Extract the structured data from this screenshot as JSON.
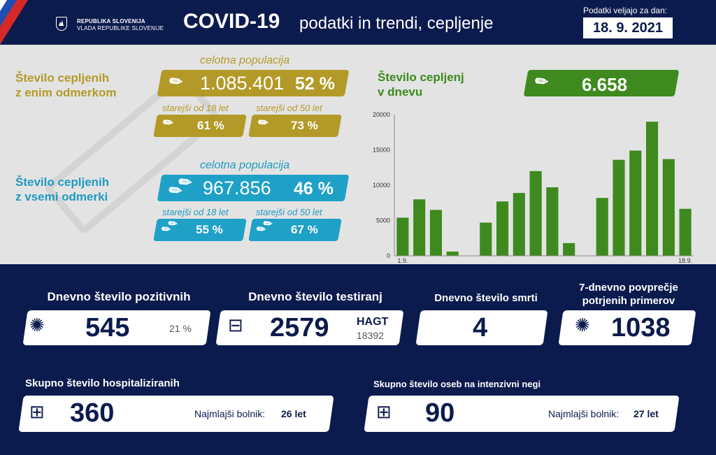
{
  "header": {
    "gov_line1": "REPUBLIKA SLOVENIJA",
    "gov_line2": "VLADA REPUBLIKE SLOVENIJE",
    "title_main": "COVID-19",
    "title_sub": "podatki in trendi, cepljenje",
    "date_label": "Podatki veljajo za dan:",
    "date": "18. 9. 2021"
  },
  "one_dose": {
    "title_line1": "Število cepljenih",
    "title_line2": "z enim odmerkom",
    "pop_label": "celotna populacija",
    "total": "1.085.401",
    "total_pct": "52 %",
    "age18_label": "starejši od 18 let",
    "age18_pct": "61 %",
    "age50_label": "starejši od 50 let",
    "age50_pct": "73 %",
    "color": "#b39a28"
  },
  "all_doses": {
    "title_line1": "Število cepljenih",
    "title_line2": "z vsemi odmerki",
    "pop_label": "celotna populacija",
    "total": "967.856",
    "total_pct": "46 %",
    "age18_label": "starejši od 18 let",
    "age18_pct": "55 %",
    "age50_label": "starejši od 50 let",
    "age50_pct": "67 %",
    "color": "#1fa0c7"
  },
  "daily_vacc": {
    "title_line1": "Število cepljenj",
    "title_line2": "v dnevu",
    "value": "6.658",
    "color": "#3e8a1e"
  },
  "chart_data": {
    "type": "bar",
    "x": [
      "1.",
      "2.",
      "3.",
      "4.",
      "5.",
      "6.",
      "7.",
      "8.",
      "9.",
      "10.",
      "11.",
      "12.",
      "13.",
      "14.",
      "15.",
      "16.",
      "17.",
      "18."
    ],
    "values": [
      5400,
      8000,
      6500,
      600,
      0,
      4700,
      7700,
      8900,
      12000,
      9700,
      1800,
      0,
      8200,
      13600,
      14900,
      19000,
      13700,
      6658
    ],
    "x_tick_labels": [
      "1.9.",
      "18.9."
    ],
    "y_ticks": [
      0,
      5000,
      10000,
      15000,
      20000
    ],
    "ylim": [
      0,
      20000
    ],
    "bar_color": "#3e8a1e",
    "grid": false
  },
  "stats": {
    "positive": {
      "title": "Dnevno število pozitivnih",
      "value": "545",
      "pct": "21 %"
    },
    "tests": {
      "title": "Dnevno število testiranj",
      "value": "2579",
      "hagt_label": "HAGT",
      "hagt_value": "18392"
    },
    "deaths": {
      "title": "Dnevno število smrti",
      "value": "4"
    },
    "avg7": {
      "title_line1": "7-dnevno povprečje",
      "title_line2": "potrjenih primerov",
      "value": "1038"
    },
    "hosp": {
      "title": "Skupno število hospitaliziranih",
      "value": "360",
      "youngest_label": "Najmlajši bolnik:",
      "youngest_value": "26 let"
    },
    "icu": {
      "title": "Skupno število oseb na intenzivni negi",
      "value": "90",
      "youngest_label": "Najmlajši bolnik:",
      "youngest_value": "27 let"
    }
  }
}
